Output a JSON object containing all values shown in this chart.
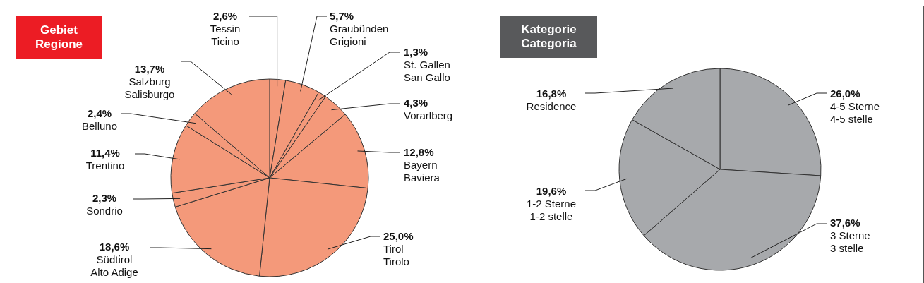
{
  "chart_data": [
    {
      "type": "pie",
      "title": "Gebiet\nRegione",
      "categories": [
        "Tessin\nTicino",
        "Graubünden\nGrigioni",
        "St. Gallen\nSan Gallo",
        "Vorarlberg",
        "Bayern\nBaviera",
        "Tirol\nTirolo",
        "Südtirol\nAlto Adige",
        "Sondrio",
        "Trentino",
        "Belluno",
        "Salzburg\nSalisburgo"
      ],
      "values": [
        2.6,
        5.7,
        1.3,
        4.3,
        12.8,
        25.0,
        18.6,
        2.3,
        11.4,
        2.4,
        13.7
      ],
      "value_labels": [
        "2,6%",
        "5,7%",
        "1,3%",
        "4,3%",
        "12,8%",
        "25,0%",
        "18,6%",
        "2,3%",
        "11,4%",
        "2,4%",
        "13,7%"
      ],
      "colors": [
        "#f4997a",
        "#f4997a",
        "#f4997a",
        "#f4997a",
        "#f4997a",
        "#f4997a",
        "#f4997a",
        "#f4997a",
        "#f4997a",
        "#f4997a",
        "#f4997a"
      ],
      "legend": false
    },
    {
      "type": "pie",
      "title": "Kategorie\nCategoria",
      "categories": [
        "4-5 Sterne\n4-5 stelle",
        "3 Sterne\n3 stelle",
        "1-2 Sterne\n1-2 stelle",
        "Residence"
      ],
      "values": [
        26.0,
        37.6,
        19.6,
        16.8
      ],
      "value_labels": [
        "26,0%",
        "37,6%",
        "19,6%",
        "16,8%"
      ],
      "colors": [
        "#a7a9ac",
        "#a7a9ac",
        "#a7a9ac",
        "#a7a9ac"
      ],
      "legend": false
    }
  ]
}
